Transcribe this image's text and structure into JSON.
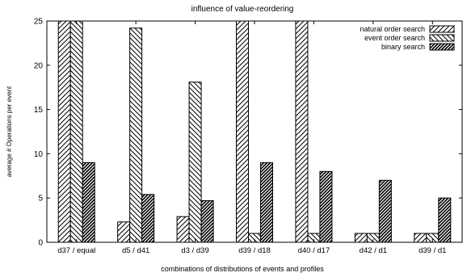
{
  "chart_data": {
    "type": "bar",
    "title": "influence of value-reordering",
    "xlabel": "combinations of distributions of events and profiles",
    "ylabel": "average # Operations per event",
    "ylim": [
      0,
      25
    ],
    "yticks": [
      0,
      5,
      10,
      15,
      20,
      25
    ],
    "grid": false,
    "legend_position": "top-right",
    "categories": [
      "d37 / equal",
      "d5 / d41",
      "d3 / d39",
      "d39 / d18",
      "d40 / d17",
      "d42 / d1",
      "d39 / d1"
    ],
    "series": [
      {
        "name": "natural order search",
        "pattern": "diagonal-up",
        "values": [
          25,
          2.3,
          2.9,
          25,
          25,
          1,
          1
        ]
      },
      {
        "name": "event order search",
        "pattern": "diagonal-down",
        "values": [
          25,
          24.2,
          18.1,
          1,
          1,
          1,
          1
        ]
      },
      {
        "name": "binary search",
        "pattern": "diagonal-dense",
        "values": [
          9,
          5.4,
          4.7,
          9,
          8,
          7,
          5
        ]
      }
    ]
  }
}
